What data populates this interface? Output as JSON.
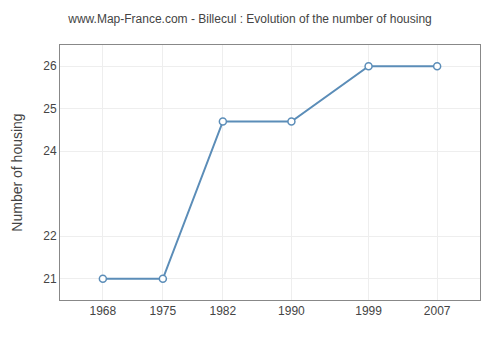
{
  "chart_data": {
    "type": "line",
    "title": "www.Map-France.com - Billecul : Evolution of the number of housing",
    "ylabel": "Number of housing",
    "x": [
      1968,
      1975,
      1982,
      1990,
      1999,
      2007
    ],
    "values": [
      21,
      21,
      24.7,
      24.7,
      26,
      26
    ],
    "xlim": [
      1963,
      2012
    ],
    "xticks": [
      1968,
      1975,
      1982,
      1990,
      1999,
      2007
    ],
    "ylim": [
      20.5,
      26.5
    ],
    "yticks": [
      21,
      22,
      24,
      25,
      26
    ],
    "color": "#5b8db8",
    "marker": "circle",
    "grid": true
  }
}
